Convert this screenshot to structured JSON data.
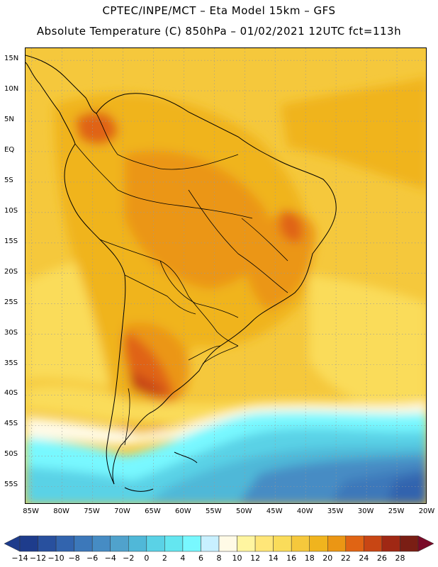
{
  "header": {
    "line1": "CPTEC/INPE/MCT –  Eta Model 15km – GFS",
    "line2": "Absolute Temperature (C) 850hPa – 01/02/2021 12UTC fct=113h"
  },
  "map": {
    "lat_labels": [
      "15N",
      "10N",
      "5N",
      "EQ",
      "5S",
      "10S",
      "15S",
      "20S",
      "25S",
      "30S",
      "35S",
      "40S",
      "45S",
      "50S",
      "55S"
    ],
    "lon_labels": [
      "85W",
      "80W",
      "75W",
      "70W",
      "65W",
      "60W",
      "55W",
      "50W",
      "45W",
      "40W",
      "35W",
      "30W",
      "25W",
      "20W"
    ],
    "lat_values": [
      15,
      10,
      5,
      0,
      -5,
      -10,
      -15,
      -20,
      -25,
      -30,
      -35,
      -40,
      -45,
      -50,
      -55
    ],
    "lon_values": [
      -85,
      -80,
      -75,
      -70,
      -65,
      -60,
      -55,
      -50,
      -45,
      -40,
      -35,
      -30,
      -25,
      -20
    ],
    "extent": {
      "lon_min": -86,
      "lon_max": -20,
      "lat_min": -58,
      "lat_max": 17
    },
    "gridlines": "dotted"
  },
  "colorbar": {
    "labels": [
      "-14",
      "-12",
      "-10",
      "-8",
      "-6",
      "-4",
      "-2",
      "0",
      "2",
      "4",
      "6",
      "8",
      "10",
      "12",
      "14",
      "16",
      "18",
      "20",
      "22",
      "24",
      "26",
      "28"
    ],
    "colors": [
      "#1e3c8c",
      "#28509e",
      "#3264ae",
      "#3c78ba",
      "#468cc4",
      "#50a2cc",
      "#50b8d8",
      "#5ad2e6",
      "#64e6f0",
      "#78f8ff",
      "#c8f0ff",
      "#fffae6",
      "#fff5a0",
      "#ffe678",
      "#fadc5a",
      "#f5c83c",
      "#f0b41e",
      "#eb9614",
      "#e06414",
      "#c84614",
      "#a02814",
      "#7a1e14"
    ],
    "left_arrow_color": "#1e3c8c",
    "right_arrow_color": "#7a0a28"
  }
}
